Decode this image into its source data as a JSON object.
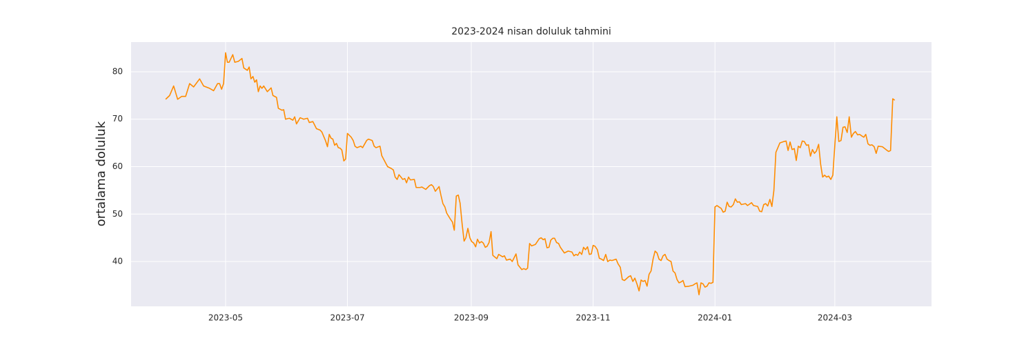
{
  "chart_data": {
    "type": "line",
    "title": "2023-2024 nisan doluluk tahmini",
    "y_label": "ortalama doluluk",
    "grid": true,
    "x": [
      0,
      2,
      4,
      6,
      8,
      10,
      12,
      14,
      17,
      19,
      22,
      24,
      26,
      27,
      28,
      29,
      30,
      30.9,
      31.8,
      33.6,
      34.6,
      36.4,
      38.2,
      39.1,
      40.9,
      41.8,
      42.7,
      43.7,
      44.6,
      45.5,
      46.4,
      47.3,
      48.2,
      49.1,
      50.9,
      52.8,
      53.7,
      55.5,
      56.4,
      58.2,
      59.1,
      60,
      61.9,
      63.7,
      64.6,
      65.5,
      67.3,
      69.1,
      71,
      71.9,
      73.7,
      75.5,
      77.3,
      78.2,
      80,
      81,
      81.9,
      82.8,
      83.7,
      84.6,
      85.5,
      86.4,
      87.3,
      88.2,
      89.2,
      90.1,
      91,
      92.9,
      93.9,
      94.8,
      95.8,
      97.7,
      98.6,
      100.6,
      101.5,
      103.4,
      104.4,
      105.3,
      107.3,
      108.2,
      109.2,
      111.1,
      113,
      114,
      114.9,
      115.9,
      116.8,
      117.8,
      118.7,
      119.7,
      120.6,
      121.6,
      122.5,
      124.5,
      125.4,
      127.3,
      128.3,
      130.2,
      132.1,
      133.1,
      134,
      135,
      136.9,
      137.8,
      138.8,
      139.8,
      140.7,
      142.6,
      143.6,
      144.5,
      145.5,
      146.5,
      147.4,
      148.4,
      149.4,
      150.3,
      151.3,
      152.3,
      153.2,
      154.2,
      155.2,
      156.1,
      157.1,
      158.1,
      159,
      160,
      160.9,
      161.9,
      162.9,
      163.8,
      165.8,
      166.7,
      168.7,
      169.6,
      170.6,
      172.5,
      173.5,
      175.4,
      176.4,
      178.3,
      179.3,
      180.3,
      181.2,
      182.2,
      183.2,
      185.1,
      187,
      188,
      189,
      189.9,
      190.9,
      191.9,
      192.8,
      193.8,
      194.7,
      195.7,
      196.7,
      197.6,
      199.6,
      201.5,
      203.4,
      204.4,
      205.4,
      206.3,
      207.3,
      208.3,
      209.2,
      210.2,
      211.2,
      212.1,
      213.1,
      214,
      215,
      216.1,
      217.1,
      218.2,
      219.2,
      220.3,
      221.3,
      222.4,
      223.4,
      225.5,
      226.5,
      227.6,
      228.6,
      229.7,
      231.8,
      232.8,
      233.9,
      234.9,
      236,
      237,
      238,
      239,
      240,
      241,
      242,
      243,
      244,
      245,
      246,
      247,
      248,
      249,
      250,
      251,
      252,
      253,
      254,
      255,
      256,
      257,
      258,
      259,
      260,
      262,
      264,
      265,
      266,
      267,
      268,
      269,
      270,
      271,
      272,
      273,
      274,
      275,
      276,
      277,
      278.1,
      279.1,
      280.1,
      281.1,
      282.1,
      283.1,
      284.2,
      285.2,
      286.2,
      287.2,
      288.2,
      290.3,
      291.3,
      293.3,
      294.3,
      296.4,
      297.4,
      298.4,
      299.4,
      300.4,
      301.4,
      302.5,
      303.5,
      304.5,
      305.5,
      306.5,
      307.5,
      309.6,
      310.6,
      311.6,
      312.6,
      313.6,
      314.7,
      315.7,
      316.7,
      317.7,
      318.7,
      319.7,
      320.8,
      321.8,
      322.8,
      323.8,
      324.8,
      325.8,
      326.9,
      327.9,
      328.9,
      329.9,
      330.9,
      331.9,
      333,
      334,
      335,
      336,
      337,
      338.1,
      339.1,
      340.1,
      341.2,
      342.2,
      343.3,
      344.3,
      345.3,
      346.4,
      347.4,
      348.4,
      349.5,
      350.5,
      351.6,
      352.6,
      353.6,
      354.7,
      355.7,
      356.7,
      358.8,
      360.9,
      361.9,
      362.9,
      364,
      365
    ],
    "series": [
      {
        "color": "#ff8c00",
        "values": [
          74.2,
          75,
          77,
          74.2,
          74.8,
          74.8,
          77.5,
          76.8,
          78.5,
          77,
          76.5,
          76,
          77.5,
          77.5,
          76.3,
          77.5,
          84,
          82,
          82,
          83.6,
          82,
          82.2,
          82.8,
          80.8,
          80.3,
          81,
          78.5,
          79,
          77.8,
          78.3,
          75.8,
          77,
          76.5,
          77,
          75.8,
          76.6,
          75,
          74.6,
          72.3,
          71.9,
          72,
          70,
          70.2,
          69.8,
          70.5,
          69,
          70.3,
          70,
          70.2,
          69.3,
          69.5,
          68,
          67.7,
          67.3,
          65.5,
          64.2,
          66.8,
          66,
          65.8,
          64.5,
          64.9,
          64,
          63.9,
          63.5,
          61.2,
          61.6,
          67,
          66.2,
          65.5,
          64.3,
          64,
          64.3,
          64,
          65.5,
          65.8,
          65.5,
          64.3,
          64,
          64.3,
          62.3,
          61.5,
          60,
          59.6,
          59.3,
          57.8,
          57.3,
          58.3,
          57.8,
          57.3,
          57.5,
          56.6,
          57.8,
          57.2,
          57.3,
          55.6,
          55.6,
          55.7,
          55.2,
          56,
          56.2,
          55.8,
          54.8,
          55.8,
          54,
          52.2,
          51.5,
          50.2,
          48.9,
          48.3,
          46.6,
          53.8,
          54,
          52.3,
          48,
          44.3,
          45,
          47,
          45,
          44.2,
          43.9,
          43.1,
          44.7,
          43.9,
          44.2,
          43.9,
          43,
          43.2,
          44,
          46.3,
          41.3,
          40.6,
          41.5,
          41,
          41.2,
          40.3,
          40.5,
          40,
          41.6,
          39.3,
          38.3,
          38.5,
          38.3,
          38.6,
          43.8,
          43.3,
          43.6,
          44.8,
          45,
          44.6,
          44.8,
          42.9,
          43,
          44.5,
          44.9,
          44.9,
          44,
          43.8,
          43,
          41.8,
          42.2,
          42,
          41.2,
          41.5,
          41.3,
          42,
          41.5,
          43,
          42.5,
          43.1,
          41.5,
          41.6,
          43.4,
          43.2,
          42.5,
          40.7,
          40.5,
          40.2,
          41.5,
          40,
          40.3,
          40.2,
          40.5,
          39.5,
          38.8,
          36.2,
          36,
          36.8,
          37,
          35.8,
          36.5,
          35.2,
          33.8,
          36.1,
          35.8,
          36,
          34.8,
          37.3,
          38,
          40.5,
          42.2,
          41.8,
          40.5,
          40.2,
          41.2,
          41.5,
          40.5,
          40.2,
          40,
          38,
          37.6,
          36.2,
          35.5,
          35.7,
          36,
          34.7,
          34.8,
          35,
          35.3,
          35.5,
          33,
          35.5,
          35.3,
          34.6,
          34.8,
          35.5,
          35.4,
          35.6,
          51.5,
          51.8,
          51.5,
          51.2,
          50.4,
          50.6,
          52.5,
          51.6,
          51.5,
          52,
          53.2,
          52.5,
          52.6,
          52,
          52.2,
          51.8,
          52.4,
          51.8,
          51.6,
          50.6,
          50.5,
          52,
          52.2,
          51.7,
          53.1,
          51.6,
          55,
          63,
          64,
          65,
          65.3,
          65.4,
          63.4,
          65.2,
          63.6,
          63.8,
          61.3,
          64.3,
          64,
          65.4,
          65.3,
          64.5,
          64.6,
          62.2,
          63.6,
          62.8,
          63.3,
          64.7,
          60.5,
          57.8,
          58.2,
          57.8,
          58,
          57.3,
          58.2,
          64.5,
          70.5,
          65.3,
          65.5,
          68.3,
          68.4,
          67.2,
          70.5,
          66.2,
          67,
          67.4,
          66.7,
          66.8,
          66.5,
          66.2,
          66.8,
          64.8,
          64.5,
          64.6,
          64.2,
          62.8,
          64.3,
          64.2,
          63.5,
          63.2,
          63.4,
          74.3,
          74
        ]
      }
    ],
    "xlim": [
      -17.3,
      383.4
    ],
    "ylim": [
      30.55,
      86.25
    ],
    "xticks": [
      {
        "value": 30,
        "label": "2023-05"
      },
      {
        "value": 91,
        "label": "2023-07"
      },
      {
        "value": 153,
        "label": "2023-09"
      },
      {
        "value": 214,
        "label": "2023-11"
      },
      {
        "value": 275,
        "label": "2024-01"
      },
      {
        "value": 335,
        "label": "2024-03"
      }
    ],
    "yticks": [
      40,
      50,
      60,
      70,
      80
    ]
  }
}
